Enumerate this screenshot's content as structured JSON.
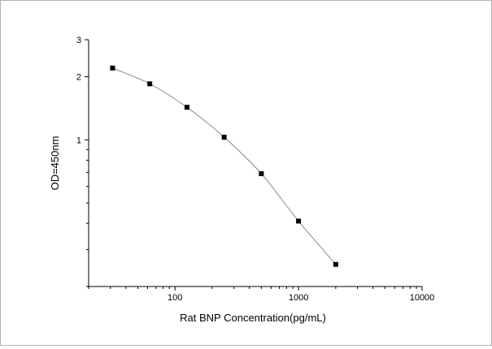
{
  "chart_data": {
    "type": "scatter",
    "title": "",
    "xlabel": "Rat BNP Concentration(pg/mL)",
    "ylabel": "OD=450nm",
    "x_scale": "log",
    "y_scale": "log",
    "xlim": [
      20,
      10000
    ],
    "ylim": [
      0.2,
      3
    ],
    "x_ticks": [
      100,
      1000,
      10000
    ],
    "x_tick_labels": [
      "100",
      "1000",
      "10000"
    ],
    "y_ticks": [
      1,
      2,
      3
    ],
    "y_tick_labels": [
      "1",
      "2",
      "3"
    ],
    "grid": false,
    "series": [
      {
        "x": [
          31.25,
          62.5,
          125,
          250,
          500,
          1000,
          2000
        ],
        "y": [
          2.2,
          1.85,
          1.43,
          1.03,
          0.69,
          0.41,
          0.255
        ],
        "marker": "square",
        "line": "smooth",
        "marker_color": "#000000",
        "line_color": "#7f7f7f"
      }
    ]
  }
}
